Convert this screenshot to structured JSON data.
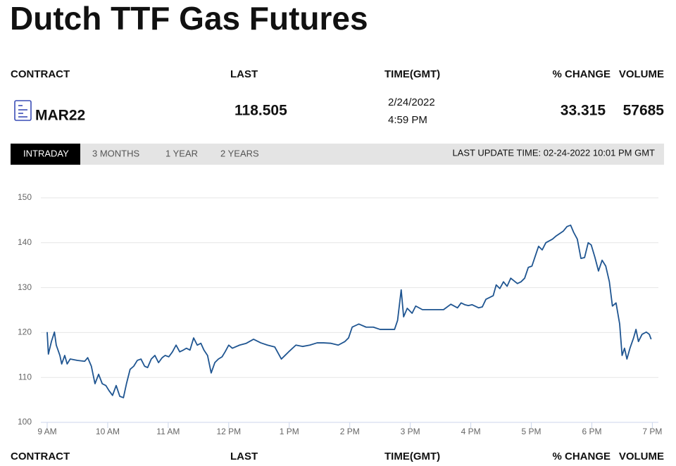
{
  "title": "Dutch TTF Gas Futures",
  "columns": [
    "CONTRACT",
    "LAST",
    "TIME(GMT)",
    "% CHANGE",
    "VOLUME"
  ],
  "quote": {
    "contract": "MAR22",
    "last": 118.505,
    "date": "2/24/2022",
    "time": "4:59 PM",
    "change": 33.315,
    "volume": 57685
  },
  "tabs": [
    "INTRADAY",
    "3 MONTHS",
    "1 YEAR",
    "2 YEARS"
  ],
  "last_update": "LAST UPDATE TIME: 02-24-2022 10:01 PM GMT",
  "chart_data": {
    "type": "line",
    "color": "#1f5591",
    "grid": true,
    "x": [
      9.0,
      9.02,
      9.07,
      9.12,
      9.15,
      9.21,
      9.24,
      9.29,
      9.33,
      9.38,
      9.5,
      9.62,
      9.67,
      9.73,
      9.79,
      9.85,
      9.91,
      9.97,
      10.02,
      10.08,
      10.14,
      10.2,
      10.26,
      10.31,
      10.37,
      10.43,
      10.49,
      10.55,
      10.61,
      10.66,
      10.72,
      10.78,
      10.84,
      10.9,
      10.95,
      11.01,
      11.07,
      11.13,
      11.19,
      11.25,
      11.3,
      11.36,
      11.42,
      11.48,
      11.54,
      11.59,
      11.65,
      11.71,
      11.77,
      11.83,
      11.89,
      11.94,
      12.0,
      12.06,
      12.18,
      12.29,
      12.41,
      12.53,
      12.64,
      12.76,
      12.87,
      12.93,
      12.99,
      13.11,
      13.22,
      13.34,
      13.46,
      13.57,
      13.69,
      13.81,
      13.92,
      13.98,
      14.04,
      14.15,
      14.27,
      14.39,
      14.5,
      14.62,
      14.74,
      14.79,
      14.85,
      14.89,
      14.95,
      15.03,
      15.09,
      15.2,
      15.32,
      15.43,
      15.55,
      15.67,
      15.78,
      15.84,
      15.9,
      15.96,
      16.02,
      16.13,
      16.19,
      16.25,
      16.37,
      16.42,
      16.48,
      16.54,
      16.6,
      16.66,
      16.77,
      16.83,
      16.89,
      16.95,
      17.01,
      17.06,
      17.12,
      17.18,
      17.24,
      17.35,
      17.41,
      17.53,
      17.59,
      17.65,
      17.7,
      17.76,
      17.82,
      17.88,
      17.94,
      17.99,
      18.05,
      18.11,
      18.17,
      18.23,
      18.29,
      18.34,
      18.4,
      18.46,
      18.5,
      18.54,
      18.58,
      18.63,
      18.69,
      18.73,
      18.77,
      18.83,
      18.9,
      18.95,
      18.98
    ],
    "values": [
      120.1,
      115.2,
      118.0,
      120.1,
      117.2,
      114.9,
      113.0,
      114.9,
      113.0,
      114.1,
      113.8,
      113.6,
      114.4,
      112.5,
      108.6,
      110.7,
      108.6,
      108.2,
      107.1,
      106.0,
      108.2,
      105.8,
      105.5,
      108.6,
      111.8,
      112.5,
      113.8,
      114.1,
      112.5,
      112.2,
      114.1,
      114.9,
      113.3,
      114.4,
      114.9,
      114.6,
      115.7,
      117.2,
      115.7,
      116.1,
      116.5,
      116.1,
      118.8,
      117.2,
      117.6,
      116.1,
      114.9,
      111.0,
      113.3,
      114.1,
      114.6,
      115.7,
      117.2,
      116.5,
      117.2,
      117.6,
      118.5,
      117.7,
      117.2,
      116.8,
      114.1,
      114.9,
      115.7,
      117.2,
      116.9,
      117.2,
      117.7,
      117.7,
      117.6,
      117.2,
      118.0,
      118.8,
      121.2,
      121.9,
      121.2,
      121.2,
      120.7,
      120.7,
      120.7,
      122.7,
      129.5,
      123.5,
      125.4,
      124.3,
      125.9,
      125.1,
      125.1,
      125.1,
      125.1,
      126.3,
      125.5,
      126.6,
      126.2,
      126.0,
      126.2,
      125.5,
      125.7,
      127.4,
      128.2,
      130.6,
      129.8,
      131.3,
      130.3,
      132.1,
      130.9,
      131.3,
      132.1,
      134.5,
      134.8,
      136.8,
      139.2,
      138.4,
      140.0,
      140.8,
      141.5,
      142.6,
      143.6,
      143.9,
      142.3,
      140.8,
      136.5,
      136.7,
      140.0,
      139.5,
      136.8,
      133.7,
      136.1,
      134.8,
      131.3,
      125.9,
      126.6,
      121.9,
      114.9,
      116.5,
      114.1,
      116.5,
      118.8,
      120.7,
      118.0,
      119.6,
      120.1,
      119.6,
      118.5
    ],
    "xlim": [
      9,
      19.1
    ],
    "xticks": [
      {
        "value": 9,
        "label": "9 AM"
      },
      {
        "value": 10,
        "label": "10 AM"
      },
      {
        "value": 11,
        "label": "11 AM"
      },
      {
        "value": 12,
        "label": "12 PM"
      },
      {
        "value": 13,
        "label": "1 PM"
      },
      {
        "value": 14,
        "label": "2 PM"
      },
      {
        "value": 15,
        "label": "3 PM"
      },
      {
        "value": 16,
        "label": "4 PM"
      },
      {
        "value": 17,
        "label": "5 PM"
      },
      {
        "value": 18,
        "label": "6 PM"
      },
      {
        "value": 19,
        "label": "7 PM"
      }
    ],
    "ylim": [
      100,
      150
    ],
    "yticks": [
      100,
      110,
      120,
      130,
      140,
      150
    ]
  },
  "footer_columns": [
    "CONTRACT",
    "LAST",
    "TIME(GMT)",
    "% CHANGE",
    "VOLUME"
  ]
}
